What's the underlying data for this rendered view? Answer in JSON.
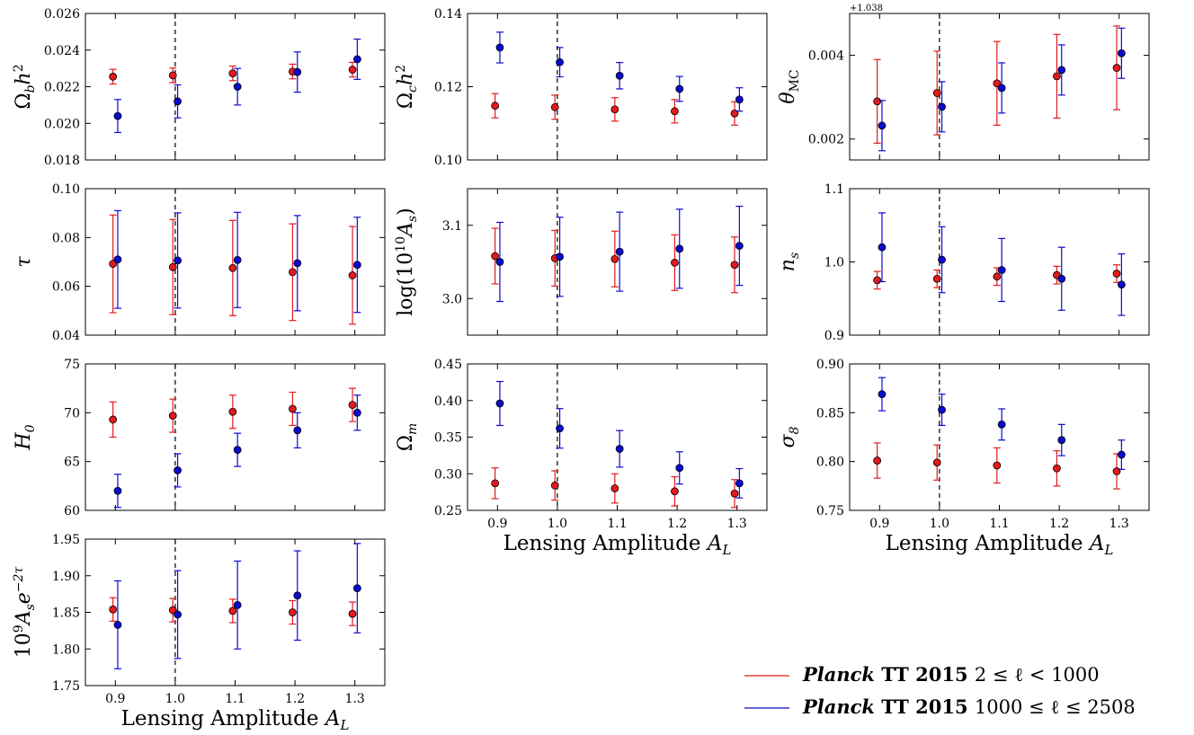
{
  "legend": {
    "position": "bottom-right",
    "entries": [
      {
        "bold": "TT 2015",
        "italic": "Planck",
        "range": "2 ≤ ℓ < 1000",
        "color": "#e31a1c"
      },
      {
        "bold": "TT 2015",
        "italic": "Planck",
        "range": "1000 ≤ ℓ ≤ 2508",
        "color": "#0a0ad0"
      }
    ]
  },
  "x_axis_label": "Lensing Amplitude A_L",
  "x_label_parts": {
    "text": "Lensing Amplitude ",
    "symbol": "A",
    "sub": "L"
  },
  "chart_data": [
    {
      "id": "omega_b",
      "type": "scatter",
      "ylabel": "Ωbh²",
      "ylabel_parts": {
        "pre": "Ω",
        "sub": "b",
        "main": "h",
        "sup": "2"
      },
      "x": [
        0.9,
        1.0,
        1.1,
        1.2,
        1.3
      ],
      "ylim": [
        0.018,
        0.026
      ],
      "yticks": [
        "0.018",
        "0.020",
        "0.022",
        "0.024",
        "0.026"
      ],
      "yticks_v": [
        0.018,
        0.02,
        0.022,
        0.024,
        0.026
      ],
      "series": [
        {
          "label": "2 ≤ ℓ < 1000",
          "values": [
            0.02255,
            0.02262,
            0.02273,
            0.02283,
            0.02293
          ],
          "err": [
            0.0004,
            0.0004,
            0.0004,
            0.0004,
            0.0004
          ]
        },
        {
          "label": "1000 ≤ ℓ ≤ 2508",
          "values": [
            0.0204,
            0.0212,
            0.022,
            0.0228,
            0.0235
          ],
          "err": [
            0.0009,
            0.0009,
            0.001,
            0.0011,
            0.0011
          ]
        }
      ]
    },
    {
      "id": "omega_c",
      "type": "scatter",
      "ylabel": "Ωch²",
      "ylabel_parts": {
        "pre": "Ω",
        "sub": "c",
        "main": "h",
        "sup": "2"
      },
      "x": [
        0.9,
        1.0,
        1.1,
        1.2,
        1.3
      ],
      "ylim": [
        0.1,
        0.14
      ],
      "yticks": [
        "0.10",
        "0.12",
        "0.14"
      ],
      "yticks_v": [
        0.1,
        0.12,
        0.14
      ],
      "series": [
        {
          "label": "2 ≤ ℓ < 1000",
          "values": [
            0.1148,
            0.1144,
            0.1138,
            0.1133,
            0.1127
          ],
          "err": [
            0.0033,
            0.0033,
            0.0032,
            0.0032,
            0.0032
          ]
        },
        {
          "label": "1000 ≤ ℓ ≤ 2508",
          "values": [
            0.1307,
            0.1267,
            0.123,
            0.1194,
            0.1165
          ],
          "err": [
            0.0042,
            0.004,
            0.0036,
            0.0034,
            0.0032
          ]
        }
      ]
    },
    {
      "id": "theta",
      "type": "scatter",
      "ylabel": "θMC",
      "ylabel_parts": {
        "pre": "θ",
        "sub": "MC",
        "main": "",
        "sup": ""
      },
      "offset": "+1.038",
      "x": [
        0.9,
        1.0,
        1.1,
        1.2,
        1.3
      ],
      "ylim": [
        0.0015,
        0.005
      ],
      "yticks": [
        "0.002",
        "0.004"
      ],
      "yticks_v": [
        0.002,
        0.004
      ],
      "series": [
        {
          "label": "2 ≤ ℓ < 1000",
          "values": [
            0.0029,
            0.0031,
            0.00333,
            0.0035,
            0.0037
          ],
          "err": [
            0.001,
            0.001,
            0.001,
            0.001,
            0.001
          ]
        },
        {
          "label": "1000 ≤ ℓ ≤ 2508",
          "values": [
            0.00232,
            0.00277,
            0.00322,
            0.00365,
            0.00405
          ],
          "err": [
            0.0006,
            0.0006,
            0.0006,
            0.0006,
            0.0006
          ]
        }
      ]
    },
    {
      "id": "tau",
      "type": "scatter",
      "ylabel": "τ",
      "ylabel_parts": {
        "pre": "τ",
        "sub": "",
        "main": "",
        "sup": ""
      },
      "x": [
        0.9,
        1.0,
        1.1,
        1.2,
        1.3
      ],
      "ylim": [
        0.04,
        0.1
      ],
      "yticks": [
        "0.04",
        "0.06",
        "0.08",
        "0.10"
      ],
      "yticks_v": [
        0.04,
        0.06,
        0.08,
        0.1
      ],
      "series": [
        {
          "label": "2 ≤ ℓ < 1000",
          "values": [
            0.0692,
            0.0679,
            0.0675,
            0.0658,
            0.0645
          ],
          "err": [
            0.02,
            0.0195,
            0.0195,
            0.0198,
            0.02
          ]
        },
        {
          "label": "1000 ≤ ℓ ≤ 2508",
          "values": [
            0.071,
            0.0706,
            0.0708,
            0.0695,
            0.0688
          ],
          "err": [
            0.02,
            0.0195,
            0.0195,
            0.0195,
            0.0195
          ]
        }
      ]
    },
    {
      "id": "logAs",
      "type": "scatter",
      "ylabel": "log(10¹⁰As)",
      "ylabel_parts": {
        "pre": "log(10",
        "sup": "10",
        "main": "A",
        "sub": "s",
        "post": ")"
      },
      "x": [
        0.9,
        1.0,
        1.1,
        1.2,
        1.3
      ],
      "ylim": [
        2.95,
        3.15
      ],
      "yticks": [
        "3.0",
        "3.1"
      ],
      "yticks_v": [
        3.0,
        3.1
      ],
      "series": [
        {
          "label": "2 ≤ ℓ < 1000",
          "values": [
            3.058,
            3.055,
            3.054,
            3.049,
            3.046
          ],
          "err": [
            0.038,
            0.038,
            0.038,
            0.038,
            0.038
          ]
        },
        {
          "label": "1000 ≤ ℓ ≤ 2508",
          "values": [
            3.05,
            3.057,
            3.064,
            3.068,
            3.072
          ],
          "err": [
            0.054,
            0.054,
            0.054,
            0.054,
            0.054
          ]
        }
      ]
    },
    {
      "id": "ns",
      "type": "scatter",
      "ylabel": "ns",
      "ylabel_parts": {
        "pre": "n",
        "sub": "s",
        "main": "",
        "sup": ""
      },
      "x": [
        0.9,
        1.0,
        1.1,
        1.2,
        1.3
      ],
      "ylim": [
        0.9,
        1.1
      ],
      "yticks": [
        "0.9",
        "1.0",
        "1.1"
      ],
      "yticks_v": [
        0.9,
        1.0,
        1.1
      ],
      "series": [
        {
          "label": "2 ≤ ℓ < 1000",
          "values": [
            0.975,
            0.977,
            0.98,
            0.982,
            0.984
          ],
          "err": [
            0.012,
            0.012,
            0.012,
            0.012,
            0.012
          ]
        },
        {
          "label": "1000 ≤ ℓ ≤ 2508",
          "values": [
            1.02,
            1.003,
            0.989,
            0.977,
            0.969
          ],
          "err": [
            0.047,
            0.045,
            0.043,
            0.043,
            0.042
          ]
        }
      ]
    },
    {
      "id": "H0",
      "type": "scatter",
      "ylabel": "H0",
      "ylabel_parts": {
        "pre": "H",
        "sub": "0",
        "main": "",
        "sup": ""
      },
      "x": [
        0.9,
        1.0,
        1.1,
        1.2,
        1.3
      ],
      "ylim": [
        60,
        75
      ],
      "yticks": [
        "60",
        "65",
        "70",
        "75"
      ],
      "yticks_v": [
        60,
        65,
        70,
        75
      ],
      "series": [
        {
          "label": "2 ≤ ℓ < 1000",
          "values": [
            69.3,
            69.7,
            70.1,
            70.4,
            70.8
          ],
          "err": [
            1.8,
            1.7,
            1.7,
            1.7,
            1.7
          ]
        },
        {
          "label": "1000 ≤ ℓ ≤ 2508",
          "values": [
            62.0,
            64.1,
            66.2,
            68.2,
            70.0
          ],
          "err": [
            1.7,
            1.7,
            1.7,
            1.8,
            1.8
          ]
        }
      ]
    },
    {
      "id": "omega_m",
      "type": "scatter",
      "ylabel": "Ωm",
      "ylabel_parts": {
        "pre": "Ω",
        "sub": "m",
        "main": "",
        "sup": ""
      },
      "x": [
        0.9,
        1.0,
        1.1,
        1.2,
        1.3
      ],
      "ylim": [
        0.25,
        0.45
      ],
      "yticks": [
        "0.25",
        "0.30",
        "0.35",
        "0.40",
        "0.45"
      ],
      "yticks_v": [
        0.25,
        0.3,
        0.35,
        0.4,
        0.45
      ],
      "series": [
        {
          "label": "2 ≤ ℓ < 1000",
          "values": [
            0.287,
            0.284,
            0.28,
            0.276,
            0.273
          ],
          "err": [
            0.021,
            0.02,
            0.02,
            0.02,
            0.019
          ]
        },
        {
          "label": "1000 ≤ ℓ ≤ 2508",
          "values": [
            0.396,
            0.362,
            0.334,
            0.308,
            0.287
          ],
          "err": [
            0.03,
            0.027,
            0.025,
            0.022,
            0.02
          ]
        }
      ]
    },
    {
      "id": "sigma8",
      "type": "scatter",
      "ylabel": "σ8",
      "ylabel_parts": {
        "pre": "σ",
        "sub": "8",
        "main": "",
        "sup": ""
      },
      "x": [
        0.9,
        1.0,
        1.1,
        1.2,
        1.3
      ],
      "ylim": [
        0.75,
        0.9
      ],
      "yticks": [
        "0.75",
        "0.80",
        "0.85",
        "0.90"
      ],
      "yticks_v": [
        0.75,
        0.8,
        0.85,
        0.9
      ],
      "series": [
        {
          "label": "2 ≤ ℓ < 1000",
          "values": [
            0.801,
            0.799,
            0.796,
            0.793,
            0.79
          ],
          "err": [
            0.018,
            0.018,
            0.018,
            0.018,
            0.018
          ]
        },
        {
          "label": "1000 ≤ ℓ ≤ 2508",
          "values": [
            0.869,
            0.853,
            0.838,
            0.822,
            0.807
          ],
          "err": [
            0.017,
            0.016,
            0.016,
            0.016,
            0.015
          ]
        }
      ]
    },
    {
      "id": "As_e2tau",
      "type": "scatter",
      "ylabel": "10⁹Ase⁻²τ",
      "ylabel_parts": {
        "pre": "10",
        "sup": "9",
        "main": "A",
        "sub": "s",
        "post": "e",
        "sup2": "−2τ"
      },
      "x": [
        0.9,
        1.0,
        1.1,
        1.2,
        1.3
      ],
      "ylim": [
        1.75,
        1.95
      ],
      "yticks": [
        "1.75",
        "1.80",
        "1.85",
        "1.90",
        "1.95"
      ],
      "yticks_v": [
        1.75,
        1.8,
        1.85,
        1.9,
        1.95
      ],
      "series": [
        {
          "label": "2 ≤ ℓ < 1000",
          "values": [
            1.854,
            1.853,
            1.852,
            1.85,
            1.848
          ],
          "err": [
            0.016,
            0.016,
            0.016,
            0.016,
            0.016
          ]
        },
        {
          "label": "1000 ≤ ℓ ≤ 2508",
          "values": [
            1.833,
            1.847,
            1.86,
            1.873,
            1.883
          ],
          "err": [
            0.06,
            0.06,
            0.06,
            0.061,
            0.061
          ]
        }
      ]
    }
  ],
  "x_ticks": [
    "0.9",
    "1.0",
    "1.1",
    "1.2",
    "1.3"
  ],
  "x_ticks_v": [
    0.9,
    1.0,
    1.1,
    1.2,
    1.3
  ],
  "x_range": [
    0.85,
    1.35
  ],
  "reference_line_x": 1.0
}
